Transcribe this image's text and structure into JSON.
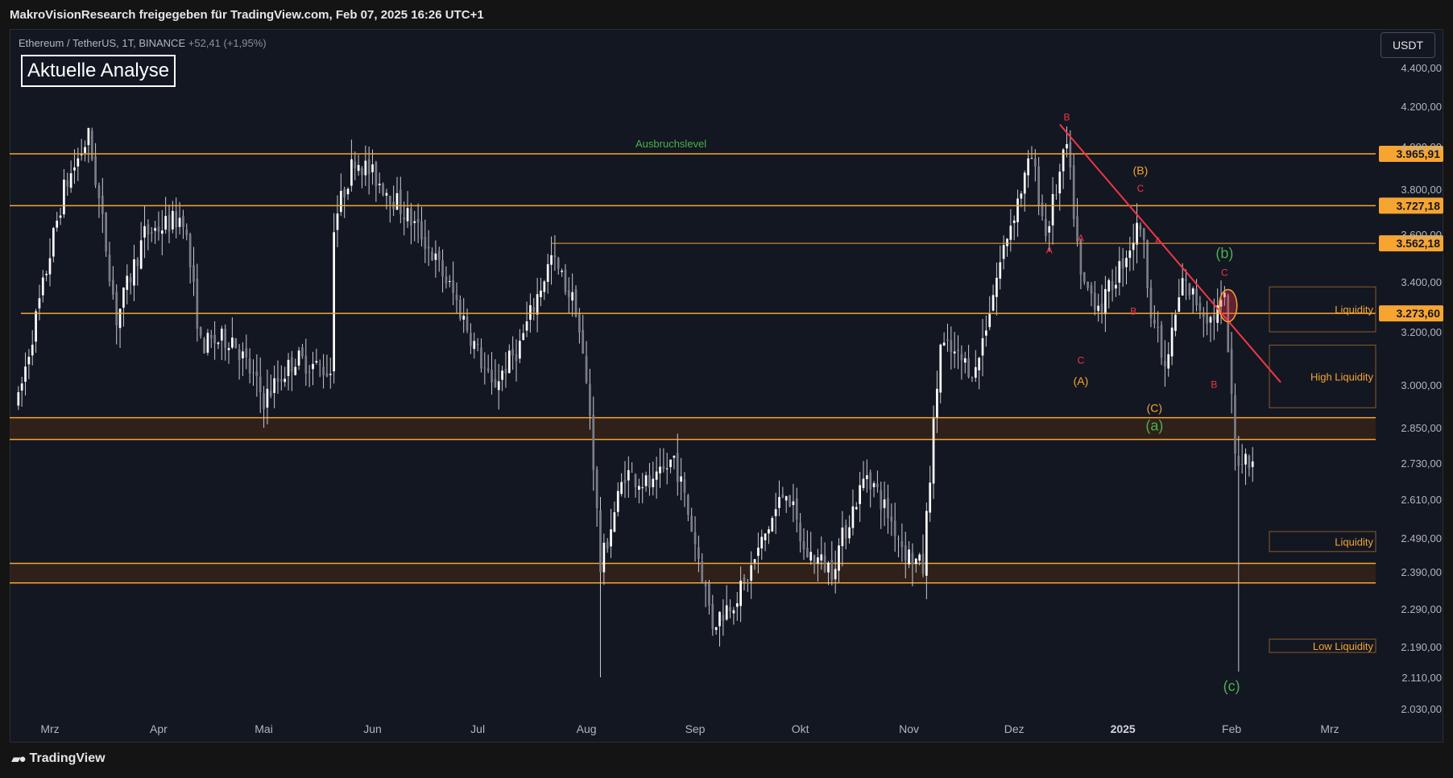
{
  "header": {
    "publisher_line": "MakroVisionResearch freigegeben für TradingView.com, Feb 07, 2025 16:26 UTC+1"
  },
  "symbol": {
    "name": "Ethereum / TetherUS, 1T, BINANCE",
    "change": "+52,41 (+1,95%)"
  },
  "annotation_title": "Aktuelle Analyse",
  "currency": "USDT",
  "footer": {
    "brand": "TradingView"
  },
  "colors": {
    "background": "#131722",
    "level_line": "#f7a531",
    "trend_line": "#f23645",
    "wave_red": "#f23645",
    "wave_orange": "#f7a531",
    "wave_green": "#4caf50",
    "candle": "#ffffff"
  },
  "chart_data": {
    "type": "candlestick",
    "symbol": "Ethereum / TetherUS",
    "interval": "1T",
    "exchange": "BINANCE",
    "ylim": [
      2000,
      4500
    ],
    "y_ticks": [
      4400,
      4200,
      4000,
      3800,
      3600,
      3400,
      3200,
      3000,
      2850,
      2730,
      2610,
      2490,
      2390,
      2290,
      2190,
      2110,
      2030
    ],
    "y_tick_labels": [
      "4.400,00",
      "4.200,00",
      "4.000,00",
      "3.800,00",
      "3.600,00",
      "3.400,00",
      "3.200,00",
      "3.000,00",
      "2.850,00",
      "2.730,00",
      "2.610,00",
      "2.490,00",
      "2.390,00",
      "2.290,00",
      "2.190,00",
      "2.110,00",
      "2.030,00"
    ],
    "x_ticks": [
      {
        "label": "Mrz",
        "date": "2024-03-01"
      },
      {
        "label": "Apr",
        "date": "2024-04-01"
      },
      {
        "label": "Mai",
        "date": "2024-05-01"
      },
      {
        "label": "Jun",
        "date": "2024-06-01"
      },
      {
        "label": "Jul",
        "date": "2024-07-01"
      },
      {
        "label": "Aug",
        "date": "2024-08-01"
      },
      {
        "label": "Sep",
        "date": "2024-09-01"
      },
      {
        "label": "Okt",
        "date": "2024-10-01"
      },
      {
        "label": "Nov",
        "date": "2024-11-01"
      },
      {
        "label": "Dez",
        "date": "2024-12-01"
      },
      {
        "label": "2025",
        "date": "2025-01-01"
      },
      {
        "label": "Feb",
        "date": "2025-02-01"
      },
      {
        "label": "Mrz",
        "date": "2025-03-01"
      }
    ],
    "price_path": [
      [
        "2024-02-21",
        2940
      ],
      [
        "2024-02-28",
        3380
      ],
      [
        "2024-03-05",
        3800
      ],
      [
        "2024-03-12",
        4050
      ],
      [
        "2024-03-20",
        3250
      ],
      [
        "2024-03-28",
        3600
      ],
      [
        "2024-04-08",
        3680
      ],
      [
        "2024-04-13",
        3150
      ],
      [
        "2024-04-22",
        3180
      ],
      [
        "2024-05-01",
        2950
      ],
      [
        "2024-05-10",
        3100
      ],
      [
        "2024-05-20",
        3050
      ],
      [
        "2024-05-21",
        3650
      ],
      [
        "2024-05-27",
        3950
      ],
      [
        "2024-06-05",
        3800
      ],
      [
        "2024-06-15",
        3600
      ],
      [
        "2024-06-24",
        3350
      ],
      [
        "2024-07-05",
        2990
      ],
      [
        "2024-07-13",
        3150
      ],
      [
        "2024-07-22",
        3500
      ],
      [
        "2024-07-29",
        3300
      ],
      [
        "2024-08-02",
        2900
      ],
      [
        "2024-08-05",
        2400
      ],
      [
        "2024-08-12",
        2700
      ],
      [
        "2024-08-20",
        2650
      ],
      [
        "2024-08-26",
        2750
      ],
      [
        "2024-09-06",
        2250
      ],
      [
        "2024-09-15",
        2350
      ],
      [
        "2024-09-27",
        2650
      ],
      [
        "2024-10-02",
        2450
      ],
      [
        "2024-10-10",
        2400
      ],
      [
        "2024-10-20",
        2700
      ],
      [
        "2024-10-31",
        2450
      ],
      [
        "2024-11-05",
        2400
      ],
      [
        "2024-11-10",
        3150
      ],
      [
        "2024-11-20",
        3050
      ],
      [
        "2024-11-29",
        3600
      ],
      [
        "2024-12-06",
        3950
      ],
      [
        "2024-12-10",
        3600
      ],
      [
        "2024-12-16",
        4000
      ],
      [
        "2024-12-20",
        3400
      ],
      [
        "2024-12-26",
        3300
      ],
      [
        "2025-01-06",
        3650
      ],
      [
        "2025-01-09",
        3300
      ],
      [
        "2025-01-13",
        3050
      ],
      [
        "2025-01-18",
        3400
      ],
      [
        "2025-01-26",
        3250
      ],
      [
        "2025-01-30",
        3320
      ],
      [
        "2025-02-02",
        2750
      ],
      [
        "2025-02-07",
        2750
      ]
    ],
    "wick_extremes": [
      {
        "date": "2024-03-12",
        "high": 4090
      },
      {
        "date": "2024-08-05",
        "low": 2110
      },
      {
        "date": "2024-12-16",
        "high": 4100
      },
      {
        "date": "2025-02-03",
        "low": 2125
      }
    ],
    "horizontal_levels": [
      {
        "label": "3.965,91",
        "value": 3965.91,
        "name": "Ausbruchslevel"
      },
      {
        "label": "3.727,18",
        "value": 3727.18
      },
      {
        "label": "3.562,18",
        "value": 3562.18
      },
      {
        "label": "3.273,60",
        "value": 3273.6
      }
    ],
    "zones": [
      {
        "from": 2810,
        "to": 2885
      },
      {
        "from": 2360,
        "to": 2415
      }
    ],
    "liquidity_boxes": [
      {
        "label": "Liquidity",
        "from": 3200,
        "to": 3380
      },
      {
        "label": "High Liquidity",
        "from": 2920,
        "to": 3150
      },
      {
        "label": "Liquidity",
        "from": 2450,
        "to": 2510
      },
      {
        "label": "Low Liquidity",
        "from": 2175,
        "to": 2210
      }
    ],
    "trend_line": {
      "from": [
        "2024-12-14",
        4110
      ],
      "to": [
        "2025-02-15",
        3010
      ]
    },
    "level_annotation": "Ausbruchslevel",
    "waves": [
      {
        "text": "B",
        "date": "2024-12-16",
        "price": 4130,
        "color": "red"
      },
      {
        "text": "A",
        "date": "2024-12-11",
        "price": 3520,
        "color": "red"
      },
      {
        "text": "A",
        "date": "2024-12-20",
        "price": 3570,
        "color": "red"
      },
      {
        "text": "C",
        "date": "2024-12-20",
        "price": 3080,
        "color": "red"
      },
      {
        "text": "(A)",
        "date": "2024-12-20",
        "price": 3000,
        "color": "orange"
      },
      {
        "text": "(B)",
        "date": "2025-01-06",
        "price": 3870,
        "color": "orange"
      },
      {
        "text": "C",
        "date": "2025-01-06",
        "price": 3790,
        "color": "red"
      },
      {
        "text": "B",
        "date": "2025-01-04",
        "price": 3270,
        "color": "red"
      },
      {
        "text": "A",
        "date": "2025-01-11",
        "price": 3560,
        "color": "red"
      },
      {
        "text": "(C)",
        "date": "2025-01-10",
        "price": 2905,
        "color": "orange"
      },
      {
        "text": "(a)",
        "date": "2025-01-10",
        "price": 2840,
        "color": "green"
      },
      {
        "text": "(b)",
        "date": "2025-01-30",
        "price": 3500,
        "color": "green"
      },
      {
        "text": "C",
        "date": "2025-01-30",
        "price": 3425,
        "color": "red"
      },
      {
        "text": "B",
        "date": "2025-01-27",
        "price": 2990,
        "color": "red"
      },
      {
        "text": "(c)",
        "date": "2025-02-01",
        "price": 2075,
        "color": "green"
      }
    ],
    "highlight_ellipse": {
      "date": "2025-01-31",
      "price": 3305
    }
  }
}
